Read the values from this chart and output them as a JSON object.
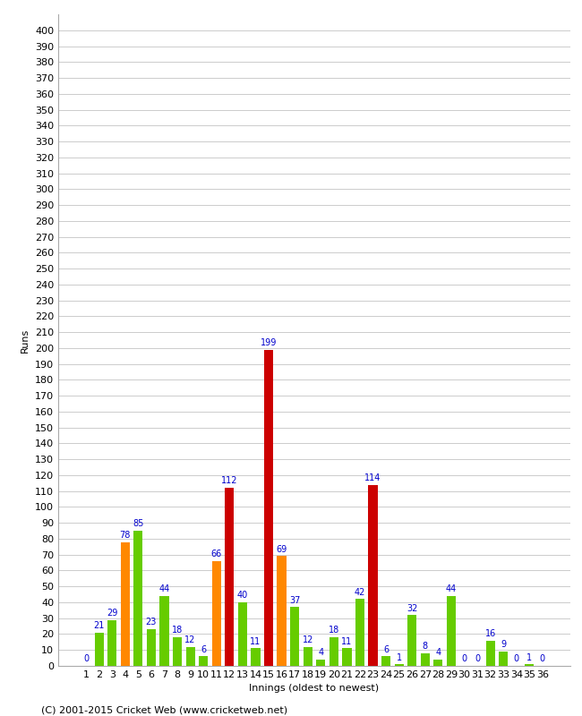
{
  "innings": [
    1,
    2,
    3,
    4,
    5,
    6,
    7,
    8,
    9,
    10,
    11,
    12,
    13,
    14,
    15,
    16,
    17,
    18,
    19,
    20,
    21,
    22,
    23,
    24,
    25,
    26,
    27,
    28,
    29,
    30,
    31,
    32,
    33,
    34,
    35,
    36
  ],
  "runs": [
    0,
    21,
    29,
    78,
    85,
    23,
    44,
    18,
    12,
    6,
    66,
    112,
    40,
    11,
    199,
    69,
    37,
    12,
    4,
    18,
    11,
    42,
    114,
    6,
    1,
    32,
    8,
    4,
    44,
    0,
    0,
    16,
    9,
    0,
    1,
    0
  ],
  "colors": [
    "#66cc00",
    "#66cc00",
    "#66cc00",
    "#ff8800",
    "#66cc00",
    "#66cc00",
    "#66cc00",
    "#66cc00",
    "#66cc00",
    "#66cc00",
    "#ff8800",
    "#cc0000",
    "#66cc00",
    "#66cc00",
    "#cc0000",
    "#ff8800",
    "#66cc00",
    "#66cc00",
    "#66cc00",
    "#66cc00",
    "#66cc00",
    "#66cc00",
    "#cc0000",
    "#66cc00",
    "#66cc00",
    "#66cc00",
    "#66cc00",
    "#66cc00",
    "#66cc00",
    "#66cc00",
    "#66cc00",
    "#66cc00",
    "#66cc00",
    "#66cc00",
    "#66cc00",
    "#66cc00"
  ],
  "ylabel": "Runs",
  "xlabel": "Innings (oldest to newest)",
  "ylim": [
    0,
    410
  ],
  "ytick_vals": [
    0,
    10,
    20,
    30,
    40,
    50,
    60,
    70,
    80,
    90,
    100,
    110,
    120,
    130,
    140,
    150,
    160,
    170,
    180,
    190,
    200,
    210,
    220,
    230,
    240,
    250,
    260,
    270,
    280,
    290,
    300,
    310,
    320,
    330,
    340,
    350,
    360,
    370,
    380,
    390,
    400
  ],
  "footer": "(C) 2001-2015 Cricket Web (www.cricketweb.net)",
  "label_color": "#0000cc",
  "bg_color": "#ffffff",
  "grid_color": "#cccccc",
  "bar_width": 0.7,
  "label_fontsize": 7,
  "axis_fontsize": 8,
  "footer_fontsize": 8,
  "fig_width": 6.5,
  "fig_height": 8.0,
  "dpi": 100
}
